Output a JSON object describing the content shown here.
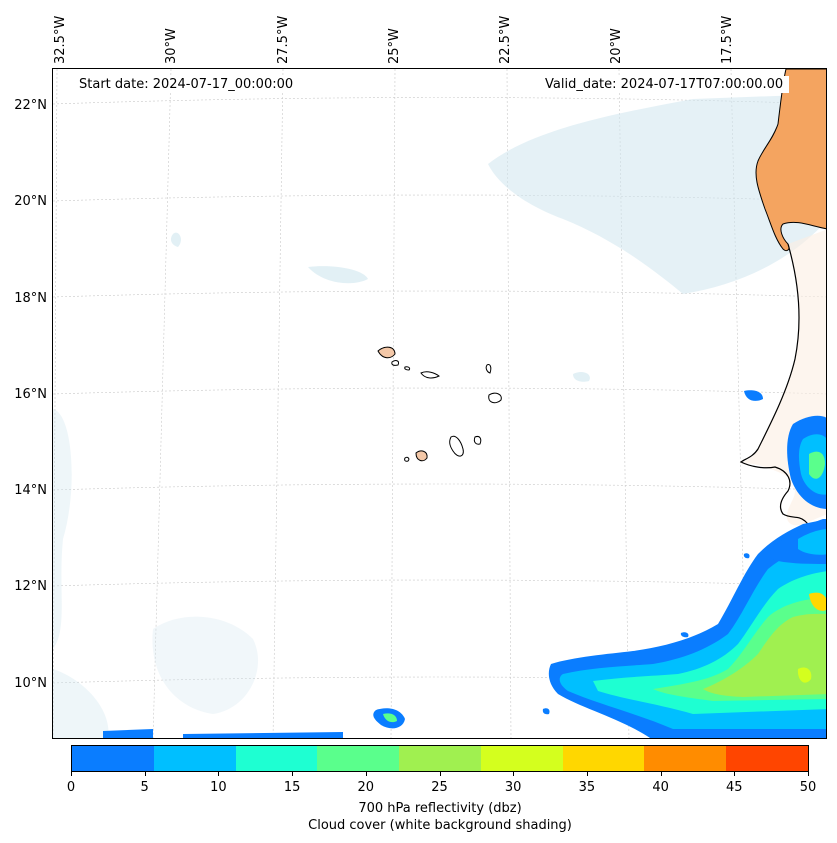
{
  "map": {
    "start_date": "Start date: 2024-07-17_00:00:00",
    "valid_date": "Valid_date: 2024-07-17T07:00:00.00",
    "lon_labels": [
      "32.5°W",
      "30°W",
      "27.5°W",
      "25°W",
      "22.5°W",
      "20°W",
      "17.5°W"
    ],
    "lat_labels": [
      "22°N",
      "20°N",
      "18°N",
      "16°N",
      "14°N",
      "12°N",
      "10°N"
    ]
  },
  "colorbar": {
    "ticks": [
      "0",
      "5",
      "10",
      "15",
      "20",
      "25",
      "30",
      "35",
      "40",
      "45",
      "50"
    ],
    "colors": [
      "#0a7dff",
      "#00bfff",
      "#1effd2",
      "#5aff8c",
      "#a0f050",
      "#d4ff1e",
      "#ffd700",
      "#ff8c00",
      "#ff4500"
    ],
    "label_line1": "700 hPa reflectivity (dbz)",
    "label_line2": "Cloud cover (white background shading)"
  },
  "colors": {
    "land": "#f4a460",
    "cloud": "#cfe6ee",
    "grid": "#c8c8c8"
  }
}
